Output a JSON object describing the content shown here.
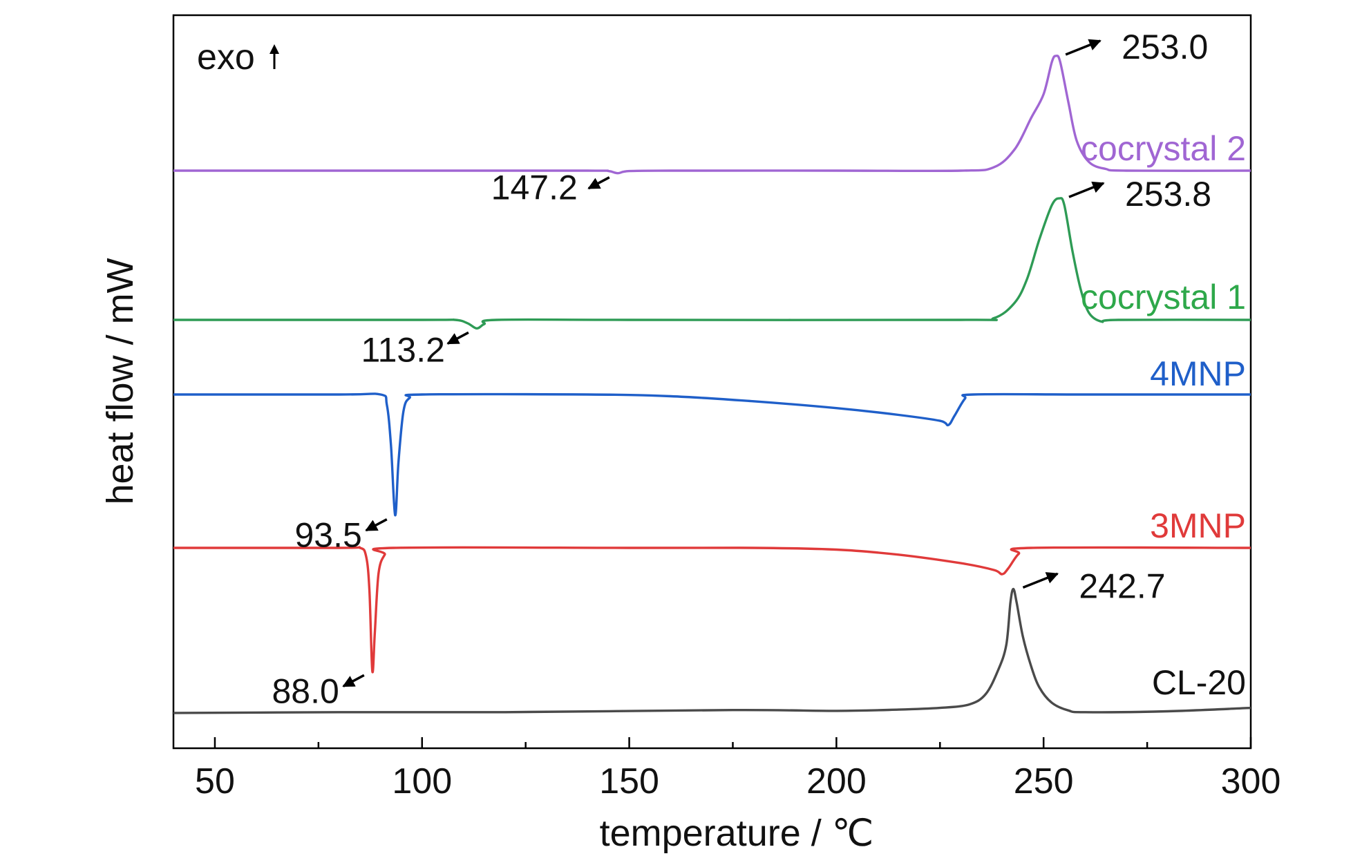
{
  "chart_data": {
    "type": "line",
    "xlabel": "temperature / ℃",
    "ylabel": "heat flow / mW",
    "xlim": [
      40,
      300
    ],
    "x_ticks": [
      50,
      100,
      150,
      200,
      250,
      300
    ],
    "exo_label": "exo",
    "grid": false,
    "series": [
      {
        "name": "cocrystal 2",
        "color": "#a066d3",
        "points": [
          [
            40,
            0
          ],
          [
            100,
            0
          ],
          [
            140,
            0
          ],
          [
            145,
            -0.05
          ],
          [
            147.2,
            -0.3
          ],
          [
            150,
            -0.05
          ],
          [
            160,
            0
          ],
          [
            200,
            0
          ],
          [
            230,
            0
          ],
          [
            238,
            0.4
          ],
          [
            243,
            2.5
          ],
          [
            247,
            6.2
          ],
          [
            250,
            9
          ],
          [
            252,
            12.8
          ],
          [
            253,
            13.5
          ],
          [
            254,
            12.8
          ],
          [
            256,
            8
          ],
          [
            258,
            3.5
          ],
          [
            261,
            1
          ],
          [
            265,
            0.2
          ],
          [
            270,
            0
          ],
          [
            300,
            0
          ]
        ],
        "annotations": [
          {
            "text": "253.0",
            "x": 253.0,
            "type": "peak"
          },
          {
            "text": "147.2",
            "x": 147.2,
            "type": "valley"
          }
        ]
      },
      {
        "name": "cocrystal 1",
        "color": "#2e9b55",
        "points": [
          [
            40,
            0
          ],
          [
            100,
            0
          ],
          [
            108,
            0
          ],
          [
            111,
            -0.4
          ],
          [
            113.2,
            -1.0
          ],
          [
            115,
            -0.5
          ],
          [
            118,
            0
          ],
          [
            150,
            0
          ],
          [
            230,
            0
          ],
          [
            238,
            0.2
          ],
          [
            243,
            2
          ],
          [
            246,
            4.8
          ],
          [
            249,
            9.5
          ],
          [
            252,
            13.5
          ],
          [
            253.8,
            14.3
          ],
          [
            255,
            13.5
          ],
          [
            257,
            8
          ],
          [
            259,
            3.5
          ],
          [
            261,
            0.8
          ],
          [
            264,
            -0.2
          ],
          [
            268,
            0
          ],
          [
            300,
            0
          ]
        ],
        "annotations": [
          {
            "text": "253.8",
            "x": 253.8,
            "type": "peak"
          },
          {
            "text": "113.2",
            "x": 113.2,
            "type": "valley"
          }
        ]
      },
      {
        "name": "4MNP",
        "color": "#1f5fc9",
        "points": [
          [
            40,
            0
          ],
          [
            80,
            0
          ],
          [
            90,
            0
          ],
          [
            91.5,
            -1.2
          ],
          [
            92.5,
            -6
          ],
          [
            93.5,
            -14.2
          ],
          [
            94.3,
            -8
          ],
          [
            95.5,
            -2
          ],
          [
            97,
            -0.4
          ],
          [
            100,
            0
          ],
          [
            140,
            0
          ],
          [
            160,
            -0.2
          ],
          [
            180,
            -0.8
          ],
          [
            200,
            -1.6
          ],
          [
            215,
            -2.4
          ],
          [
            225,
            -3.1
          ],
          [
            227,
            -3.6
          ],
          [
            228.5,
            -2.5
          ],
          [
            231,
            -0.5
          ],
          [
            233,
            0
          ],
          [
            260,
            0
          ],
          [
            300,
            0
          ]
        ],
        "annotations": [
          {
            "text": "93.5",
            "x": 93.5,
            "type": "valley"
          }
        ]
      },
      {
        "name": "3MNP",
        "color": "#e03a3a",
        "points": [
          [
            40,
            0
          ],
          [
            80,
            0
          ],
          [
            85,
            0
          ],
          [
            86.5,
            -1
          ],
          [
            87.3,
            -5
          ],
          [
            88,
            -14.5
          ],
          [
            88.6,
            -10
          ],
          [
            89.5,
            -3
          ],
          [
            91,
            -0.8
          ],
          [
            93,
            0
          ],
          [
            150,
            0
          ],
          [
            180,
            0
          ],
          [
            200,
            -0.2
          ],
          [
            215,
            -0.8
          ],
          [
            230,
            -1.8
          ],
          [
            238,
            -2.6
          ],
          [
            240,
            -3.1
          ],
          [
            241.5,
            -2.4
          ],
          [
            244,
            -0.7
          ],
          [
            247,
            0
          ],
          [
            300,
            0
          ]
        ],
        "annotations": [
          {
            "text": "88.0",
            "x": 88.0,
            "type": "valley"
          }
        ]
      },
      {
        "name": "CL-20",
        "color": "#4a4a4a",
        "points": [
          [
            40,
            0
          ],
          [
            80,
            0.1
          ],
          [
            120,
            0.1
          ],
          [
            175,
            0.35
          ],
          [
            200,
            0.25
          ],
          [
            215,
            0.4
          ],
          [
            225,
            0.6
          ],
          [
            232,
            1
          ],
          [
            236,
            2.2
          ],
          [
            239,
            5
          ],
          [
            241,
            8
          ],
          [
            242,
            13
          ],
          [
            242.7,
            14.6
          ],
          [
            243.5,
            13
          ],
          [
            245,
            9
          ],
          [
            247,
            5.5
          ],
          [
            249,
            3
          ],
          [
            252,
            1.2
          ],
          [
            256,
            0.3
          ],
          [
            260,
            0.1
          ],
          [
            280,
            0.2
          ],
          [
            300,
            0.6
          ]
        ],
        "annotations": [
          {
            "text": "242.7",
            "x": 242.7,
            "type": "peak"
          }
        ]
      }
    ]
  }
}
